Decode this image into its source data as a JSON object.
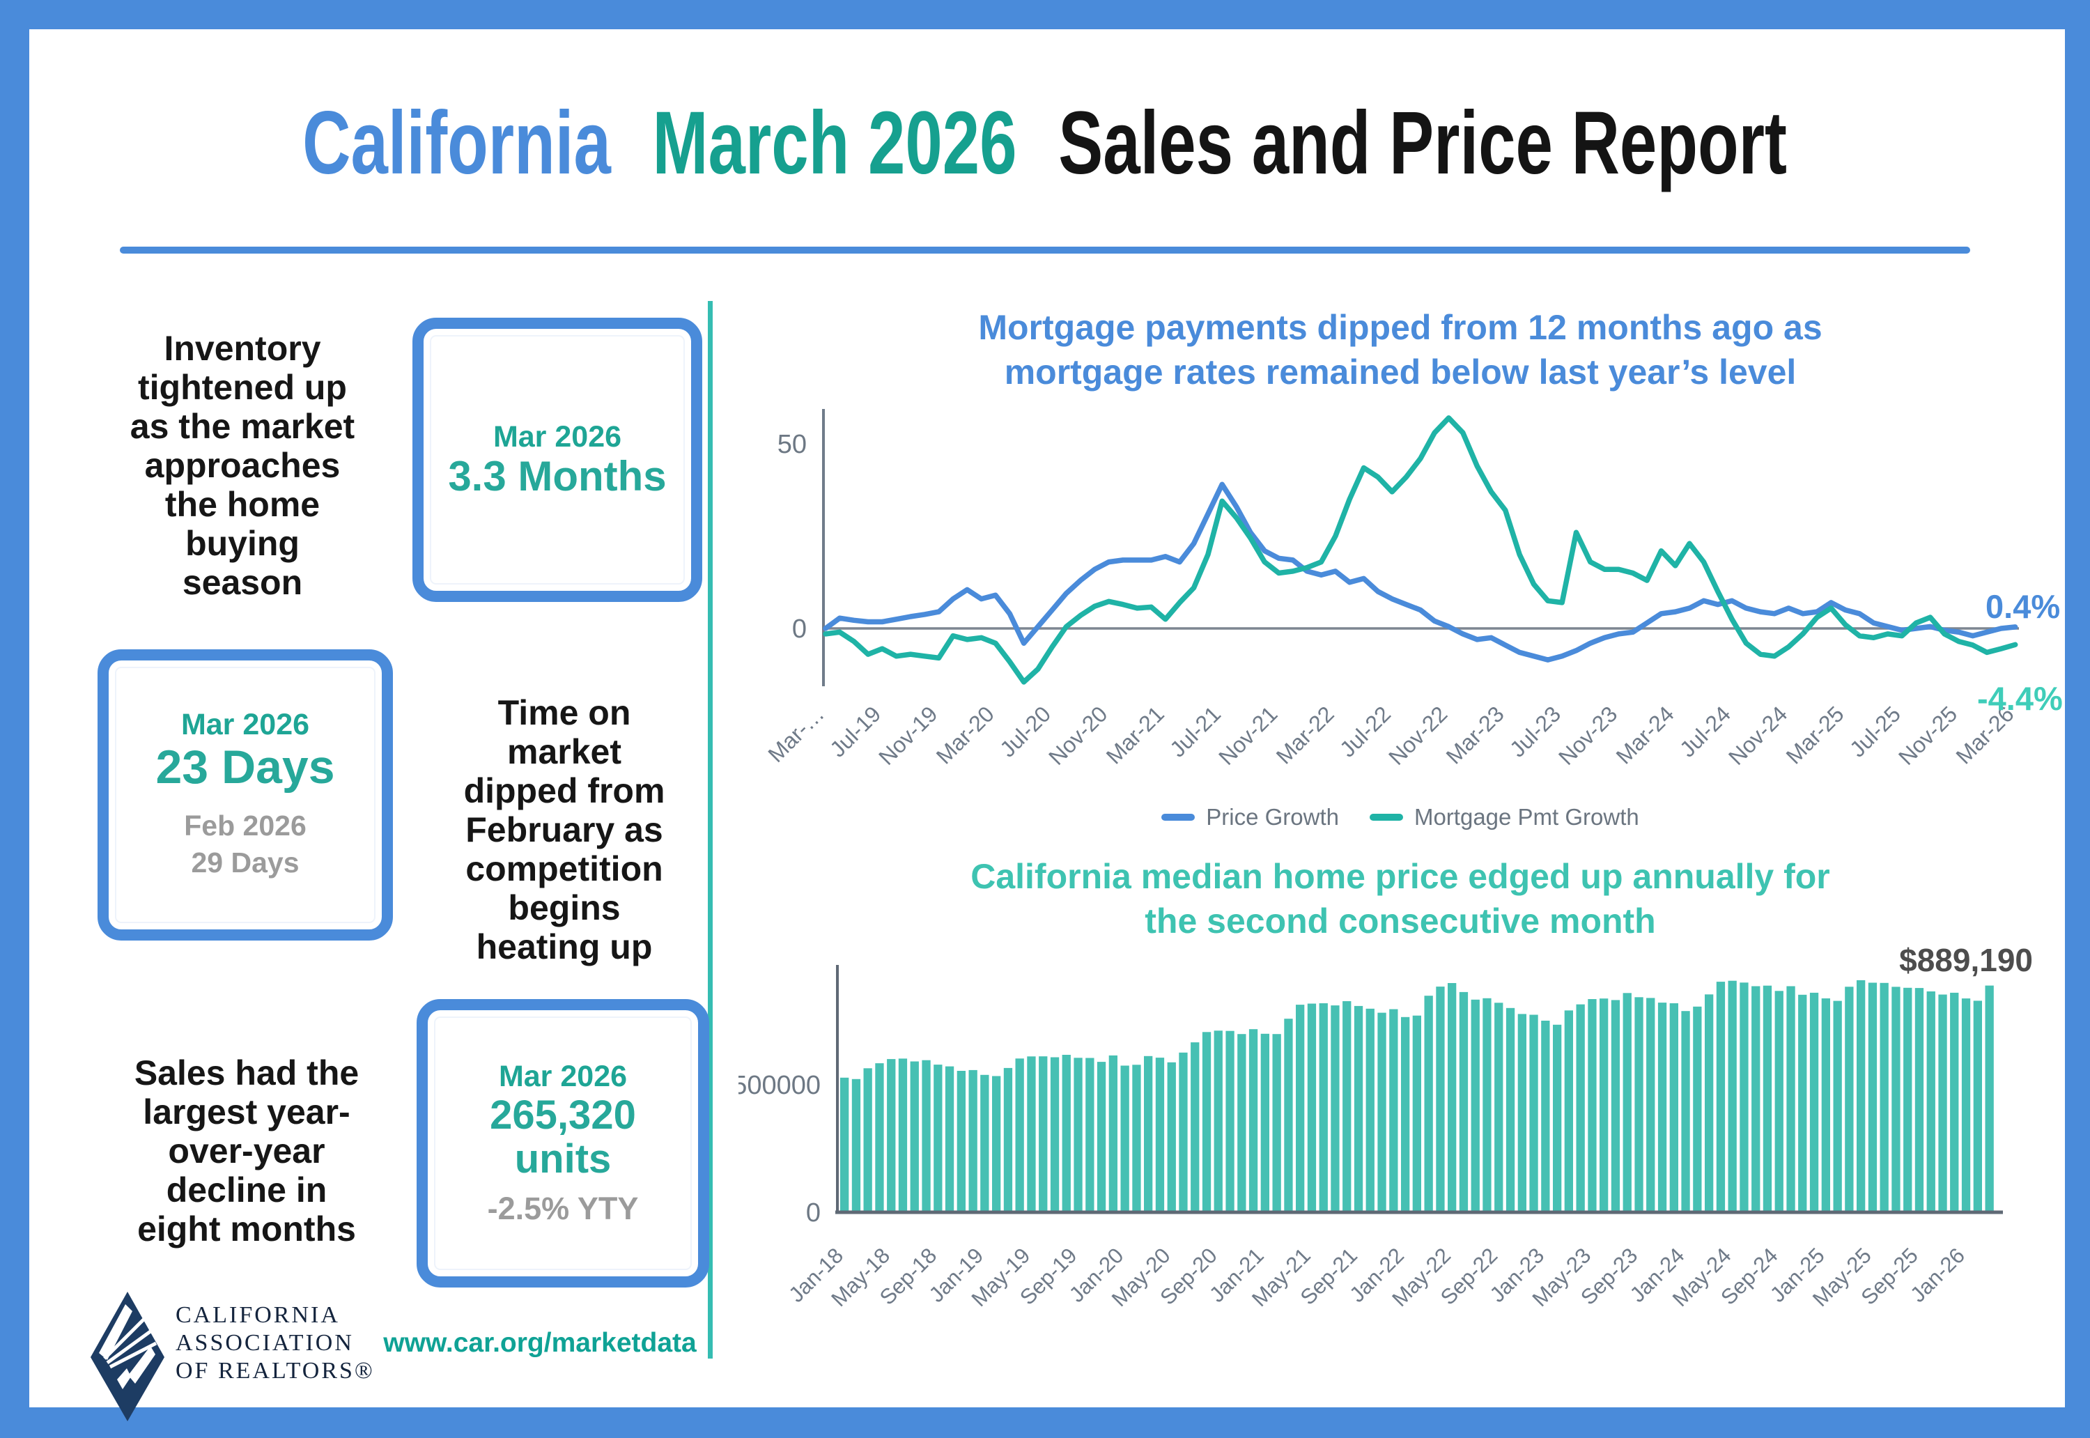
{
  "theme": {
    "frame_blue": "#4a8bda",
    "teal_dark": "#1ea595",
    "teal_light": "#45cbb7",
    "bar_teal": "#46c0b3",
    "line_teal": "#1fb3a6",
    "gray_text": "#9b9b9b",
    "axis_gray": "#6f7a88",
    "black": "#161616"
  },
  "title": {
    "word1": "California",
    "word2": "March 2026",
    "word3": "Sales and Price Report"
  },
  "stats": {
    "inventory_text": "Inventory\ntightened up\nas the market\napproaches\nthe home\nbuying\nseason",
    "inventory_box": {
      "period": "Mar 2026",
      "value": "3.3 Months"
    },
    "dom_box": {
      "period": "Mar 2026",
      "value": "23 Days",
      "prev": "Feb 2026\n29 Days"
    },
    "dom_text": "Time on\nmarket\ndipped from\nFebruary as\ncompetition\nbegins\nheating up",
    "sales_text": "Sales had the\nlargest year-\nover-year\ndecline in\neight months",
    "sales_box": {
      "period": "Mar 2026",
      "value": "265,320\nunits",
      "yty": "-2.5% YTY"
    }
  },
  "footer": {
    "logo_line1": "CALIFORNIA",
    "logo_line2": "ASSOCIATION",
    "logo_line3": "OF REALTORS®",
    "website": "www.car.org/marketdata"
  },
  "chart_data": [
    {
      "type": "line",
      "title_line1": "Mortgage payments dipped from 12 months ago as",
      "title_line2": "mortgage rates remained below last year’s level",
      "x_tick_labels": [
        "Mar-…",
        "Jul-19",
        "Nov-19",
        "Mar-20",
        "Jul-20",
        "Nov-20",
        "Mar-21",
        "Jul-21",
        "Nov-21",
        "Mar-22",
        "Jul-22",
        "Nov-22",
        "Mar-23",
        "Jul-23",
        "Nov-23",
        "Mar-24",
        "Jul-24",
        "Nov-24",
        "Mar-25",
        "Jul-25",
        "Nov-25",
        "Mar-26"
      ],
      "tick_every": 4,
      "yticks": [
        {
          "v": 50,
          "label": "50"
        },
        {
          "v": 0,
          "label": "0"
        }
      ],
      "ylim": [
        -17,
        60
      ],
      "legend_position": "bottom",
      "grid": false,
      "series": [
        {
          "name": "Price Growth",
          "color": "#4a8bda",
          "end_label": "0.4%",
          "end_label_color": "#4a8bda",
          "values": [
            0,
            2.8,
            2.2,
            1.8,
            1.8,
            2.5,
            3.2,
            3.8,
            4.5,
            8,
            10.5,
            8,
            9,
            4,
            -4,
            0.5,
            5,
            9.5,
            13,
            16,
            18,
            18.5,
            18.5,
            18.5,
            19.5,
            18,
            23,
            31,
            39,
            33,
            26,
            21,
            19,
            18.5,
            15.5,
            14.5,
            15.5,
            12.5,
            13.5,
            10,
            8,
            6.5,
            5,
            2,
            0.5,
            -1.5,
            -3,
            -2.5,
            -4.5,
            -6.5,
            -7.5,
            -8.5,
            -7.5,
            -6,
            -4,
            -2.5,
            -1.5,
            -1,
            1.5,
            4,
            4.5,
            5.5,
            7.5,
            6.5,
            7.5,
            5.5,
            4.5,
            4,
            5.5,
            4,
            4.5,
            7,
            5,
            4,
            1.5,
            0.5,
            -0.5,
            0,
            0.5,
            -0.5,
            -1,
            -2,
            -1,
            0,
            0.4
          ]
        },
        {
          "name": "Mortgage Pmt Growth",
          "color": "#1fb3a6",
          "end_label": "-4.4%",
          "end_label_color": "#3fcdb9",
          "values": [
            -1.5,
            -1,
            -3.5,
            -7,
            -5.5,
            -7.5,
            -7,
            -7.5,
            -8,
            -2,
            -3,
            -2.5,
            -4,
            -9,
            -14.5,
            -11,
            -5,
            0.5,
            3.5,
            6,
            7.3,
            6.5,
            5.5,
            5.8,
            2.5,
            7,
            11,
            20,
            34.5,
            30,
            24.5,
            18,
            15,
            15.5,
            16.5,
            18,
            25,
            35,
            43.5,
            41,
            37,
            41,
            46,
            53,
            57,
            53,
            44,
            37,
            32,
            20,
            12,
            7.5,
            7,
            26,
            18,
            16,
            16,
            15,
            13,
            21,
            17,
            23,
            18,
            10,
            2.5,
            -4,
            -7,
            -7.5,
            -5,
            -1.5,
            3,
            5.5,
            1,
            -2,
            -2.5,
            -1.5,
            -2,
            1.5,
            3,
            -1.5,
            -3.5,
            -4.5,
            -6.5,
            -5.5,
            -4.4
          ]
        }
      ]
    },
    {
      "type": "bar",
      "title_line1": "California median home price edged up annually for",
      "title_line2": "the second consecutive month",
      "color": "#46c0b3",
      "x_tick_labels": [
        "Jan-18",
        "May-18",
        "Sep-18",
        "Jan-19",
        "May-19",
        "Sep-19",
        "Jan-20",
        "May-20",
        "Sep-20",
        "Jan-21",
        "May-21",
        "Sep-21",
        "Jan-22",
        "May-22",
        "Sep-22",
        "Jan-23",
        "May-23",
        "Sep-23",
        "Jan-24",
        "May-24",
        "Sep-24",
        "Jan-25",
        "May-25",
        "Sep-25",
        "Jan-26"
      ],
      "tick_every": 4,
      "yticks": [
        {
          "v": 500000,
          "label": "500000"
        },
        {
          "v": 0,
          "label": "0"
        }
      ],
      "ylim": [
        0,
        960000
      ],
      "grid": false,
      "annotation": "$889,190",
      "annotation_color": "#4d4d4d",
      "values": [
        527800,
        522440,
        564830,
        584460,
        600860,
        602760,
        591460,
        596410,
        578850,
        572000,
        554760,
        557600,
        538690,
        534140,
        565880,
        602920,
        611190,
        611420,
        607990,
        617410,
        605680,
        605280,
        589770,
        615090,
        575160,
        578530,
        612440,
        606410,
        588070,
        626170,
        666320,
        706900,
        712430,
        711300,
        699000,
        717930,
        699890,
        699000,
        758990,
        813980,
        818260,
        819630,
        811170,
        827940,
        808890,
        798440,
        782480,
        796570,
        765580,
        771270,
        849080,
        884890,
        898980,
        863790,
        833910,
        839460,
        821680,
        801190,
        777500,
        774580,
        751330,
        735480,
        791490,
        815340,
        836110,
        838260,
        832340,
        859800,
        843340,
        840360,
        822200,
        819740,
        788940,
        806490,
        854490,
        904210,
        908040,
        900720,
        886560,
        888740,
        868150,
        886560,
        852880,
        861020,
        838850,
        829060,
        884350,
        910160,
        900170,
        899560,
        884050,
        880250,
        879470,
        866250,
        853850,
        861000,
        838480,
        829500,
        889190
      ]
    }
  ]
}
